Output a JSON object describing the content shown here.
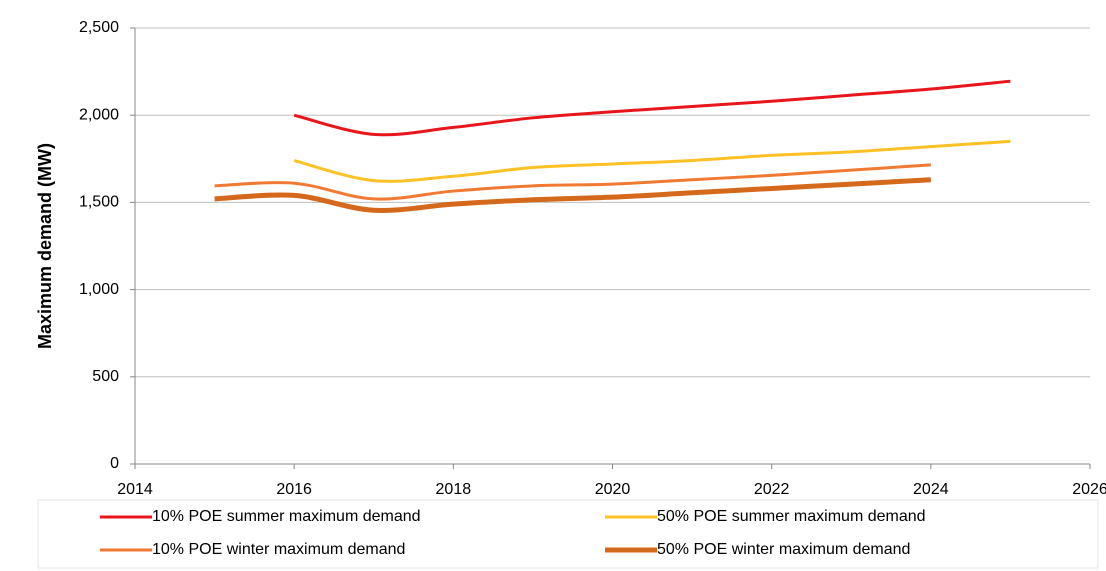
{
  "chart_data": {
    "type": "line",
    "y_label": "Maximum demand (MW)",
    "x": [
      2015,
      2016,
      2017,
      2018,
      2019,
      2020,
      2021,
      2022,
      2023,
      2024,
      2025
    ],
    "series": [
      {
        "name": "10% POE summer maximum demand",
        "color": "#e8151b",
        "line_width": 3,
        "values": [
          null,
          2000,
          1890,
          1930,
          1985,
          2020,
          2050,
          2080,
          2115,
          2150,
          2195
        ]
      },
      {
        "name": "50% POE summer maximum demand",
        "color": "#fcc125",
        "line_width": 3,
        "values": [
          null,
          1740,
          1625,
          1650,
          1700,
          1720,
          1740,
          1770,
          1790,
          1820,
          1850
        ]
      },
      {
        "name": "10% POE winter maximum demand",
        "color": "#f07a33",
        "line_width": 3,
        "values": [
          1595,
          1610,
          1520,
          1565,
          1595,
          1605,
          1630,
          1655,
          1685,
          1715,
          null
        ]
      },
      {
        "name": "50% POE winter maximum demand",
        "color": "#d4691c",
        "line_width": 5,
        "values": [
          1520,
          1540,
          1455,
          1490,
          1515,
          1530,
          1555,
          1580,
          1605,
          1630,
          null
        ]
      }
    ],
    "xlim": [
      2014,
      2026
    ],
    "xticks": [
      2014,
      2016,
      2018,
      2020,
      2022,
      2024,
      2026
    ],
    "ylim": [
      0,
      2500
    ],
    "yticks": [
      0,
      500,
      {
        "value": 1000,
        "label": "1,000"
      },
      {
        "value": 1500,
        "label": "1,500"
      },
      {
        "value": 2000,
        "label": "2,000"
      },
      {
        "value": 2500,
        "label": "2,500"
      }
    ],
    "grid": true,
    "legend": "bottom"
  }
}
